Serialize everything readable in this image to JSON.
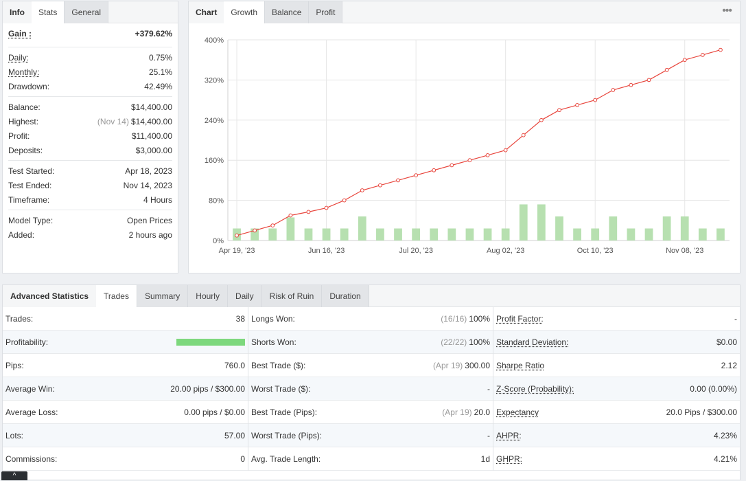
{
  "info_tabs": {
    "info": "Info",
    "stats": "Stats",
    "general": "General"
  },
  "info": {
    "gain": {
      "label": "Gain :",
      "value": "+379.62%"
    },
    "daily": {
      "label": "Daily:",
      "value": "0.75%"
    },
    "monthly": {
      "label": "Monthly:",
      "value": "25.1%"
    },
    "drawdown": {
      "label": "Drawdown:",
      "value": "42.49%"
    },
    "balance": {
      "label": "Balance:",
      "value": "$14,400.00"
    },
    "highest": {
      "label": "Highest:",
      "date": "(Nov 14)",
      "value": "$14,400.00"
    },
    "profit": {
      "label": "Profit:",
      "value": "$11,400.00"
    },
    "deposits": {
      "label": "Deposits:",
      "value": "$3,000.00"
    },
    "test_started": {
      "label": "Test Started:",
      "value": "Apr 18, 2023"
    },
    "test_ended": {
      "label": "Test Ended:",
      "value": "Nov 14, 2023"
    },
    "timeframe": {
      "label": "Timeframe:",
      "value": "4 Hours"
    },
    "model_type": {
      "label": "Model Type:",
      "value": "Open Prices"
    },
    "added": {
      "label": "Added:",
      "value": "2 hours ago"
    }
  },
  "chart_tabs": {
    "chart": "Chart",
    "growth": "Growth",
    "balance": "Balance",
    "profit": "Profit"
  },
  "chart_more_icon": "more-dots-icon",
  "chart_data": {
    "type": "line",
    "title": "",
    "xlabel": "",
    "ylabel": "",
    "ylim": [
      0,
      400
    ],
    "yticks": [
      "0%",
      "80%",
      "160%",
      "240%",
      "320%",
      "400%"
    ],
    "xticks": [
      "Apr 19, '23",
      "Jun 16, '23",
      "Jul 20, '23",
      "Aug 02, '23",
      "Oct 10, '23",
      "Nov 08, '23"
    ],
    "grid": true,
    "growth_line_color": "#e8453c",
    "bar_color": "#b7e0b0",
    "growth": [
      10,
      20,
      30,
      50,
      57,
      65,
      80,
      100,
      110,
      120,
      130,
      140,
      150,
      160,
      170,
      180,
      210,
      240,
      260,
      270,
      280,
      300,
      310,
      320,
      340,
      360,
      370,
      380
    ],
    "bars": [
      24,
      24,
      24,
      46,
      24,
      24,
      24,
      48,
      24,
      24,
      24,
      24,
      24,
      24,
      24,
      24,
      72,
      72,
      48,
      24,
      24,
      48,
      24,
      24,
      48,
      48,
      24,
      24
    ]
  },
  "adv_tabs": {
    "label": "Advanced Statistics",
    "trades": "Trades",
    "summary": "Summary",
    "hourly": "Hourly",
    "daily": "Daily",
    "risk": "Risk of Ruin",
    "duration": "Duration"
  },
  "trades": {
    "col1": [
      {
        "label": "Trades:",
        "value": "38"
      },
      {
        "label": "Profitability:",
        "value": ""
      },
      {
        "label": "Pips:",
        "value": "760.0"
      },
      {
        "label": "Average Win:",
        "value": "20.00 pips / $300.00"
      },
      {
        "label": "Average Loss:",
        "value": "0.00 pips / $0.00"
      },
      {
        "label": "Lots:",
        "value": "57.00"
      },
      {
        "label": "Commissions:",
        "value": "0"
      }
    ],
    "profitability_fraction": 1.0,
    "col2": [
      {
        "label": "Longs Won:",
        "muted": "(16/16)",
        "value": "100%"
      },
      {
        "label": "Shorts Won:",
        "muted": "(22/22)",
        "value": "100%"
      },
      {
        "label": "Best Trade ($):",
        "muted": "(Apr 19)",
        "value": "300.00"
      },
      {
        "label": "Worst Trade ($):",
        "muted": "",
        "value": "-"
      },
      {
        "label": "Best Trade (Pips):",
        "muted": "(Apr 19)",
        "value": "20.0"
      },
      {
        "label": "Worst Trade (Pips):",
        "muted": "",
        "value": "-"
      },
      {
        "label": "Avg. Trade Length:",
        "muted": "",
        "value": "1d"
      }
    ],
    "col3": [
      {
        "label": "Profit Factor:",
        "value": "-"
      },
      {
        "label": "Standard Deviation:",
        "value": "$0.00"
      },
      {
        "label": "Sharpe Ratio",
        "value": "2.12"
      },
      {
        "label": "Z-Score (Probability):",
        "value": "0.00 (0.00%)"
      },
      {
        "label": "Expectancy",
        "value": "20.0 Pips / $300.00"
      },
      {
        "label": "AHPR:",
        "value": "4.23%"
      },
      {
        "label": "GHPR:",
        "value": "4.21%"
      }
    ]
  },
  "scroll_top_icon": "chevron-up-icon",
  "scroll_top_glyph": "^"
}
